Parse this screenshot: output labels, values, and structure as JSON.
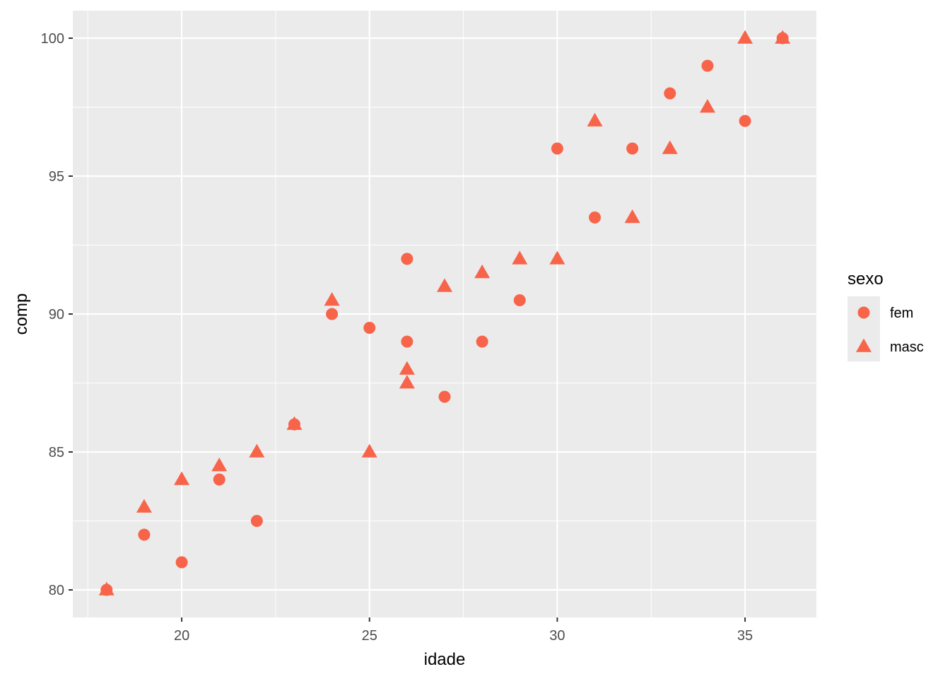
{
  "chart_data": {
    "type": "scatter",
    "xlabel": "idade",
    "ylabel": "comp",
    "xlim": [
      17.1,
      36.9
    ],
    "ylim": [
      79.0,
      101.0
    ],
    "x_ticks": [
      20,
      25,
      30,
      35
    ],
    "y_ticks": [
      80,
      85,
      90,
      95,
      100
    ],
    "grid": true,
    "legend": {
      "title": "sexo",
      "position": "right",
      "entries": [
        {
          "label": "fem",
          "shape": "circle"
        },
        {
          "label": "masc",
          "shape": "triangle"
        }
      ]
    },
    "colors": {
      "point": "#F8644A",
      "panel": "#EBEBEB",
      "grid": "#FFFFFF"
    },
    "series": [
      {
        "name": "fem",
        "shape": "circle",
        "points": [
          [
            18,
            80
          ],
          [
            19,
            82
          ],
          [
            20,
            81
          ],
          [
            21,
            84
          ],
          [
            22,
            82.5
          ],
          [
            23,
            86
          ],
          [
            24,
            90
          ],
          [
            25,
            89.5
          ],
          [
            26,
            92
          ],
          [
            26,
            89
          ],
          [
            27,
            87
          ],
          [
            28,
            89
          ],
          [
            29,
            90.5
          ],
          [
            30,
            96
          ],
          [
            31,
            93.5
          ],
          [
            32,
            96
          ],
          [
            33,
            98
          ],
          [
            34,
            99
          ],
          [
            35,
            97
          ],
          [
            36,
            100
          ]
        ]
      },
      {
        "name": "masc",
        "shape": "triangle",
        "points": [
          [
            18,
            80
          ],
          [
            19,
            83
          ],
          [
            20,
            84
          ],
          [
            21,
            84.5
          ],
          [
            22,
            85
          ],
          [
            23,
            86
          ],
          [
            24,
            90.5
          ],
          [
            25,
            85
          ],
          [
            26,
            88
          ],
          [
            26,
            87.5
          ],
          [
            27,
            91
          ],
          [
            28,
            91.5
          ],
          [
            29,
            92
          ],
          [
            30,
            92
          ],
          [
            31,
            97
          ],
          [
            32,
            93.5
          ],
          [
            33,
            96
          ],
          [
            34,
            97.5
          ],
          [
            35,
            100
          ],
          [
            36,
            100
          ]
        ]
      }
    ]
  }
}
